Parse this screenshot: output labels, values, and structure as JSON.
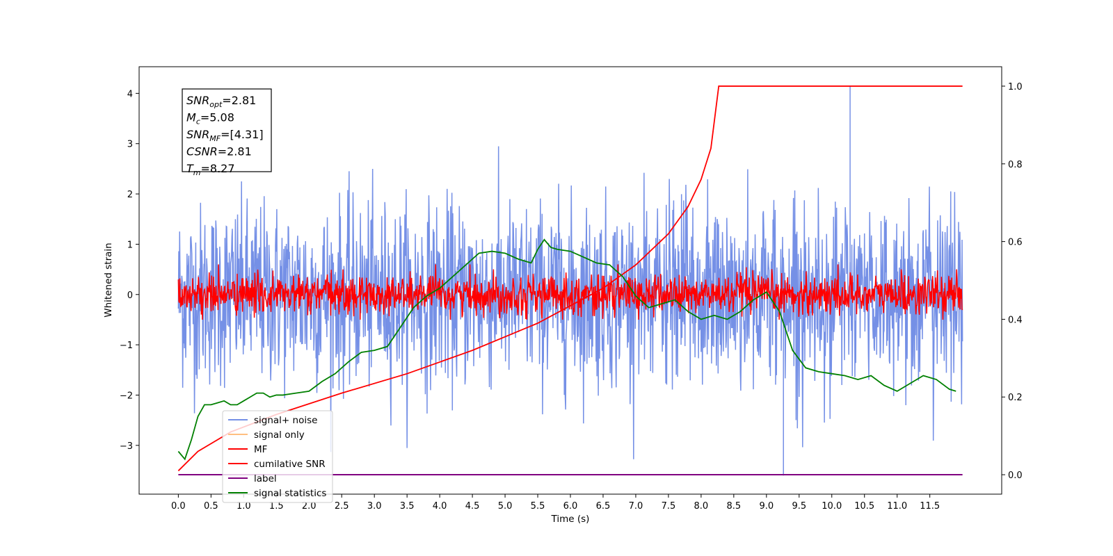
{
  "chart_data": {
    "type": "line",
    "xlabel": "Time (s)",
    "ylabel": "Whitened strain",
    "x_ticks": [
      "0.0",
      "0.5",
      "1.0",
      "1.5",
      "2.0",
      "2.5",
      "3.0",
      "3.5",
      "4.0",
      "4.5",
      "5.0",
      "5.5",
      "6.0",
      "6.5",
      "7.0",
      "7.5",
      "8.0",
      "8.5",
      "9.0",
      "9.5",
      "10.0",
      "10.5",
      "11.0",
      "11.5"
    ],
    "y_ticks": [
      "−3",
      "−2",
      "−1",
      "0",
      "1",
      "2",
      "3",
      "4"
    ],
    "y2_ticks": [
      "0.0",
      "0.2",
      "0.4",
      "0.6",
      "0.8",
      "1.0"
    ],
    "xlim": [
      -0.6,
      12.6
    ],
    "ylim": [
      -3.97,
      4.53
    ],
    "y2lim": [
      -0.05,
      1.05
    ],
    "grid": false,
    "legend_position": "lower-left",
    "colors": {
      "signal_noise": "#7590e6",
      "signal_only": "#ffbf80",
      "mf": "#ff0000",
      "cumulative_snr": "#ff0000",
      "label": "#800080",
      "signal_statistics": "#008000"
    },
    "legend": [
      {
        "name": "signal+ noise",
        "color": "#7590e6"
      },
      {
        "name": "signal only",
        "color": "#ffbf80"
      },
      {
        "name": "MF",
        "color": "#ff0000"
      },
      {
        "name": "cumilative SNR",
        "color": "#ff0000"
      },
      {
        "name": "label",
        "color": "#800080"
      },
      {
        "name": "signal statistics",
        "color": "#008000"
      }
    ],
    "annotation": [
      {
        "var": "SNR",
        "sub": "opt",
        "value": "=2.81"
      },
      {
        "var": "M",
        "sub": "c",
        "value": "=5.08"
      },
      {
        "var": "SNR",
        "sub": "MF",
        "value": "=[4.31]"
      },
      {
        "var": "CSNR",
        "sub": "",
        "value": "=2.81"
      },
      {
        "var": "T",
        "sub": "m",
        "value": "=8.27"
      }
    ],
    "series": {
      "signal_noise": {
        "t_range": [
          0,
          12
        ],
        "mean": 0.0,
        "std": 0.9,
        "min_approx": -3.6,
        "max_approx": 4.15
      },
      "mf": {
        "t_range": [
          0,
          12
        ],
        "mean": 0.0,
        "band": [
          -0.45,
          0.55
        ]
      },
      "cumulative_snr": {
        "axis": "right",
        "t": [
          0,
          0.3,
          0.8,
          1.5,
          2.5,
          3.5,
          4.5,
          5.5,
          6.5,
          7.0,
          7.5,
          7.8,
          8.0,
          8.15,
          8.27,
          12.0
        ],
        "values": [
          0.01,
          0.06,
          0.11,
          0.155,
          0.21,
          0.26,
          0.32,
          0.39,
          0.48,
          0.54,
          0.62,
          0.69,
          0.76,
          0.84,
          1.0,
          1.0
        ]
      },
      "label": {
        "axis": "right",
        "t": [
          0,
          12
        ],
        "values": [
          0.0,
          0.0
        ]
      },
      "signal_statistics": {
        "axis": "right",
        "t": [
          0.0,
          0.1,
          0.2,
          0.3,
          0.4,
          0.5,
          0.6,
          0.7,
          0.8,
          0.9,
          1.0,
          1.1,
          1.2,
          1.3,
          1.4,
          1.5,
          1.6,
          1.8,
          2.0,
          2.2,
          2.4,
          2.6,
          2.8,
          3.0,
          3.2,
          3.4,
          3.6,
          3.8,
          4.0,
          4.2,
          4.4,
          4.6,
          4.8,
          5.0,
          5.2,
          5.4,
          5.5,
          5.6,
          5.7,
          5.8,
          6.0,
          6.2,
          6.4,
          6.6,
          6.8,
          7.0,
          7.2,
          7.4,
          7.6,
          7.8,
          8.0,
          8.2,
          8.4,
          8.6,
          8.8,
          9.0,
          9.2,
          9.4,
          9.6,
          9.8,
          10.0,
          10.2,
          10.4,
          10.6,
          10.8,
          11.0,
          11.2,
          11.4,
          11.6,
          11.8,
          11.9
        ],
        "values": [
          0.06,
          0.04,
          0.09,
          0.15,
          0.18,
          0.18,
          0.185,
          0.19,
          0.18,
          0.18,
          0.19,
          0.2,
          0.21,
          0.21,
          0.2,
          0.205,
          0.205,
          0.21,
          0.215,
          0.24,
          0.26,
          0.29,
          0.315,
          0.32,
          0.33,
          0.38,
          0.43,
          0.46,
          0.48,
          0.51,
          0.54,
          0.57,
          0.575,
          0.57,
          0.555,
          0.545,
          0.58,
          0.605,
          0.585,
          0.58,
          0.575,
          0.56,
          0.545,
          0.54,
          0.51,
          0.46,
          0.43,
          0.44,
          0.45,
          0.42,
          0.4,
          0.41,
          0.4,
          0.42,
          0.45,
          0.47,
          0.42,
          0.32,
          0.275,
          0.265,
          0.26,
          0.255,
          0.245,
          0.255,
          0.23,
          0.215,
          0.235,
          0.255,
          0.245,
          0.22,
          0.215
        ]
      }
    }
  }
}
